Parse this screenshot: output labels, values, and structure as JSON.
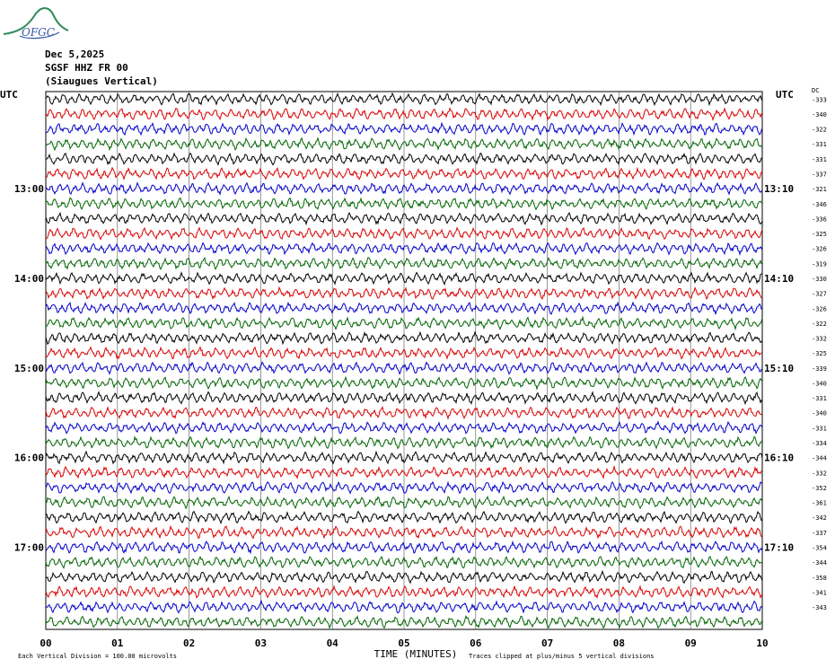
{
  "logo": {
    "text": "OFGC"
  },
  "header": {
    "date": "Dec 5,2025",
    "station": "SGSF HHZ FR 00",
    "location": "(Siaugues Vertical)"
  },
  "axes": {
    "left_title": "UTC",
    "right_title": "UTC",
    "dc_title": "DC",
    "xlabel": "TIME (MINUTES)",
    "footer_left": "Each Vertical Division =  100.00 microvolts",
    "footer_right": "Traces clipped at plus/minus 5 vertical divisions"
  },
  "chart_data": {
    "type": "line",
    "title": "",
    "xlabel": "TIME (MINUTES)",
    "ylabel": "UTC",
    "x_ticks": [
      "00",
      "01",
      "02",
      "03",
      "04",
      "05",
      "06",
      "07",
      "08",
      "09",
      "10"
    ],
    "left_hour_labels": [
      {
        "row": 6,
        "text": "13:00"
      },
      {
        "row": 12,
        "text": "14:00"
      },
      {
        "row": 18,
        "text": "15:00"
      },
      {
        "row": 24,
        "text": "16:00"
      },
      {
        "row": 30,
        "text": "17:00"
      }
    ],
    "right_hour_labels": [
      {
        "row": 6,
        "text": "13:10"
      },
      {
        "row": 12,
        "text": "14:10"
      },
      {
        "row": 18,
        "text": "15:10"
      },
      {
        "row": 24,
        "text": "16:10"
      },
      {
        "row": 30,
        "text": "17:10"
      }
    ],
    "dc_offsets": [
      "-333",
      "-340",
      "-322",
      "-331",
      "-331",
      "-337",
      "-321",
      "-346",
      "-336",
      "-325",
      "-326",
      "-319",
      "-330",
      "-327",
      "-326",
      "-322",
      "-332",
      "-325",
      "-339",
      "-340",
      "-331",
      "-340",
      "-331",
      "-334",
      "-344",
      "-332",
      "-352",
      "-361",
      "-342",
      "-337",
      "-354",
      "-344",
      "-358",
      "-341",
      "-343"
    ],
    "trace_colors": [
      "#000000",
      "#dd0000",
      "#0000cc",
      "#006600"
    ],
    "rows": 36,
    "minutes_per_row": 10,
    "grid": true
  }
}
